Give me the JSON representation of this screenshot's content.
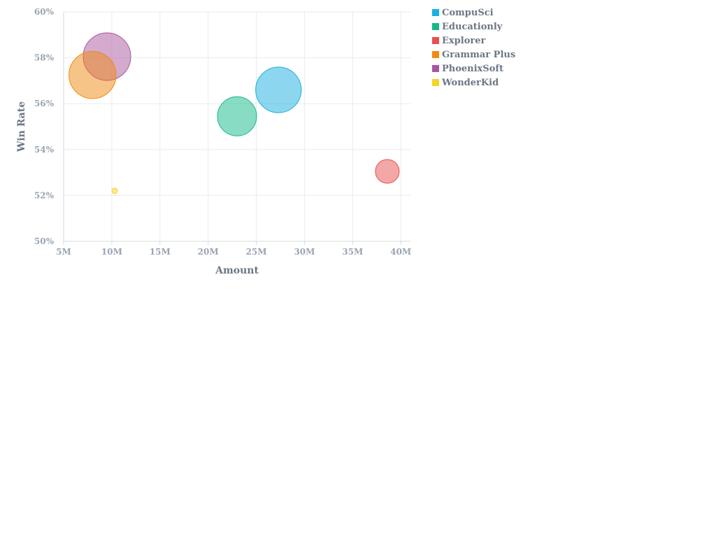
{
  "chart_data": {
    "type": "scatter",
    "subtype": "bubble",
    "title": "",
    "xlabel": "Amount",
    "ylabel": "Win Rate",
    "xlim": [
      5000000,
      41000000
    ],
    "ylim": [
      50,
      60
    ],
    "x_ticks": [
      5000000,
      10000000,
      15000000,
      20000000,
      25000000,
      30000000,
      35000000,
      40000000
    ],
    "x_tick_labels": [
      "5M",
      "10M",
      "15M",
      "20M",
      "25M",
      "30M",
      "35M",
      "40M"
    ],
    "y_ticks": [
      50,
      52,
      54,
      56,
      58,
      60
    ],
    "y_tick_labels": [
      "50%",
      "52%",
      "54%",
      "56%",
      "58%",
      "60%"
    ],
    "grid": true,
    "legend_position": "right",
    "series": [
      {
        "name": "CompuSci",
        "color": "#1ab0e0",
        "x": 27300000,
        "y": 56.6,
        "size": 10.3
      },
      {
        "name": "Educationly",
        "color": "#14b98a",
        "x": 23000000,
        "y": 55.45,
        "size": 7.6
      },
      {
        "name": "Explorer",
        "color": "#e8504f",
        "x": 38600000,
        "y": 53.05,
        "size": 2.8
      },
      {
        "name": "Grammar Plus",
        "color": "#f08a12",
        "x": 8000000,
        "y": 57.25,
        "size": 11.0
      },
      {
        "name": "PhoenixSoft",
        "color": "#a9559f",
        "x": 9500000,
        "y": 58.05,
        "size": 11.2
      },
      {
        "name": "WonderKid",
        "color": "#f5d327",
        "x": 10300000,
        "y": 52.2,
        "size": 0.15
      }
    ]
  }
}
